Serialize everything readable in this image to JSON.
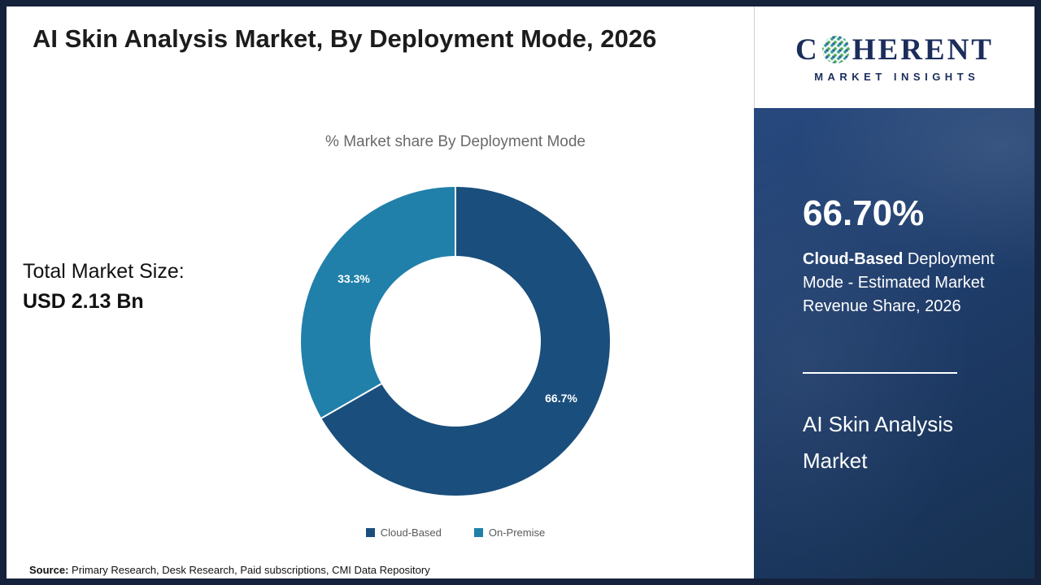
{
  "main": {
    "title": "AI Skin Analysis Market, By Deployment Mode, 2026",
    "chart_subtitle": "% Market share By Deployment Mode",
    "total_label": "Total Market Size:",
    "total_value": "USD 2.13 Bn",
    "source_label": "Source:",
    "source_text": " Primary Research, Desk Research, Paid subscriptions, CMI Data Repository"
  },
  "sidebar": {
    "logo": {
      "c": "C",
      "rest": "HERENT",
      "subtitle": "MARKET INSIGHTS"
    },
    "stat_value": "66.70%",
    "stat_desc_bold": "Cloud-Based",
    "stat_desc_rest": " Deployment Mode - Estimated Market Revenue Share, 2026",
    "market_title": "AI Skin Analysis Market"
  },
  "chart_data": {
    "type": "pie",
    "donut": true,
    "title": "% Market share By Deployment Mode",
    "categories": [
      "Cloud-Based",
      "On-Premise"
    ],
    "values": [
      66.7,
      33.3
    ],
    "labels": [
      "66.7%",
      "33.3%"
    ],
    "colors": [
      "#1a4e7c",
      "#2080aa"
    ],
    "legend_position": "bottom",
    "start_angle_deg": 0,
    "direction": "clockwise"
  },
  "colors": {
    "border_navy": "#15223c",
    "sidebar_blue": "#1d3a66",
    "logo_navy": "#1b2d5b"
  }
}
